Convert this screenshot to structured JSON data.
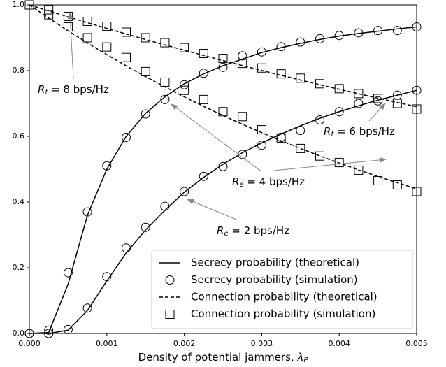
{
  "chart_data": {
    "type": "line",
    "x_label": "Density of potential jammers, ",
    "x_label_symbol": "λ",
    "x_label_subscript": "P",
    "x": [
      0,
      0.00025,
      0.0005,
      0.00075,
      0.001,
      0.00125,
      0.0015,
      0.00175,
      0.002,
      0.00225,
      0.0025,
      0.00275,
      0.003,
      0.00325,
      0.0035,
      0.00375,
      0.004,
      0.00425,
      0.0045,
      0.00475,
      0.005
    ],
    "xlim": [
      0,
      0.005
    ],
    "xticks": [
      {
        "value": 0,
        "label": "0.000"
      },
      {
        "value": 0.001,
        "label": "0.001"
      },
      {
        "value": 0.002,
        "label": "0.002"
      },
      {
        "value": 0.003,
        "label": "0.003"
      },
      {
        "value": 0.004,
        "label": "0.004"
      },
      {
        "value": 0.005,
        "label": "0.005"
      }
    ],
    "ylim": [
      0,
      1
    ],
    "yticks": [
      {
        "value": 0,
        "label": "0.0"
      },
      {
        "value": 0.2,
        "label": "0.2"
      },
      {
        "value": 0.4,
        "label": "0.4"
      },
      {
        "value": 0.6,
        "label": "0.6"
      },
      {
        "value": 0.8,
        "label": "0.8"
      },
      {
        "value": 1,
        "label": "1.0"
      }
    ],
    "legend_position": "lower right",
    "legend": [
      {
        "label": "Secrecy probability (theoretical)",
        "style": "solid"
      },
      {
        "label": "Secrecy probability (simulation)",
        "style": "circle"
      },
      {
        "label": "Connection probability (theoretical)",
        "style": "dashed"
      },
      {
        "label": "Connection probability (simulation)",
        "style": "square"
      }
    ],
    "series": [
      {
        "legend": 0,
        "color": "#000000",
        "values": [
          0,
          0.003,
          0.15,
          0.36,
          0.5,
          0.6,
          0.67,
          0.72,
          0.76,
          0.79,
          0.815,
          0.835,
          0.855,
          0.87,
          0.883,
          0.895,
          0.905,
          0.913,
          0.92,
          0.927,
          0.933
        ]
      },
      {
        "legend": 1,
        "color": "#000000",
        "values": [
          0,
          0.01,
          0.185,
          0.37,
          0.51,
          0.597,
          0.668,
          0.712,
          0.757,
          0.792,
          0.81,
          0.845,
          0.857,
          0.873,
          0.887,
          0.897,
          0.907,
          0.915,
          0.922,
          0.922,
          0.933
        ]
      },
      {
        "legend": 0,
        "color": "#000000",
        "values": [
          0,
          0,
          0.01,
          0.07,
          0.16,
          0.245,
          0.315,
          0.375,
          0.43,
          0.475,
          0.515,
          0.55,
          0.58,
          0.607,
          0.632,
          0.655,
          0.675,
          0.693,
          0.71,
          0.725,
          0.74
        ]
      },
      {
        "legend": 1,
        "color": "#000000",
        "values": [
          0,
          0,
          0.012,
          0.077,
          0.173,
          0.26,
          0.323,
          0.387,
          0.432,
          0.478,
          0.508,
          0.545,
          0.573,
          0.597,
          0.618,
          0.65,
          0.675,
          0.7,
          0.708,
          0.725,
          0.74
        ]
      },
      {
        "legend": 2,
        "color": "#000000",
        "values": [
          1,
          0.9816,
          0.9636,
          0.9459,
          0.9285,
          0.9114,
          0.8947,
          0.8782,
          0.8621,
          0.8462,
          0.8307,
          0.8154,
          0.8005,
          0.7857,
          0.7713,
          0.7571,
          0.7432,
          0.7296,
          0.7161,
          0.703,
          0.69
        ]
      },
      {
        "legend": 3,
        "color": "#000000",
        "values": [
          1,
          0.985,
          0.965,
          0.95,
          0.935,
          0.917,
          0.9,
          0.885,
          0.87,
          0.852,
          0.837,
          0.822,
          0.808,
          0.79,
          0.777,
          0.76,
          0.745,
          0.73,
          0.715,
          0.7,
          0.683
        ]
      },
      {
        "legend": 2,
        "color": "#000000",
        "values": [
          1,
          0.9598,
          0.9212,
          0.8842,
          0.8486,
          0.8145,
          0.7818,
          0.7503,
          0.7202,
          0.6912,
          0.6634,
          0.6368,
          0.6112,
          0.5866,
          0.563,
          0.5404,
          0.5187,
          0.4978,
          0.4778,
          0.4586,
          0.4402
        ]
      },
      {
        "legend": 3,
        "color": "#000000",
        "values": [
          1,
          0.97,
          0.933,
          0.9,
          0.872,
          0.84,
          0.797,
          0.765,
          0.74,
          0.712,
          0.675,
          0.66,
          0.62,
          0.595,
          0.563,
          0.54,
          0.52,
          0.497,
          0.465,
          0.452,
          0.432
        ]
      }
    ],
    "annotations": [
      {
        "symbol": "R",
        "subscript": "t",
        "text": " = 8 bps/Hz"
      },
      {
        "symbol": "R",
        "subscript": "t",
        "text": " = 6 bps/Hz"
      },
      {
        "symbol": "R",
        "subscript": "e",
        "text": " = 4 bps/Hz"
      },
      {
        "symbol": "R",
        "subscript": "e",
        "text": " = 2 bps/Hz"
      }
    ]
  }
}
